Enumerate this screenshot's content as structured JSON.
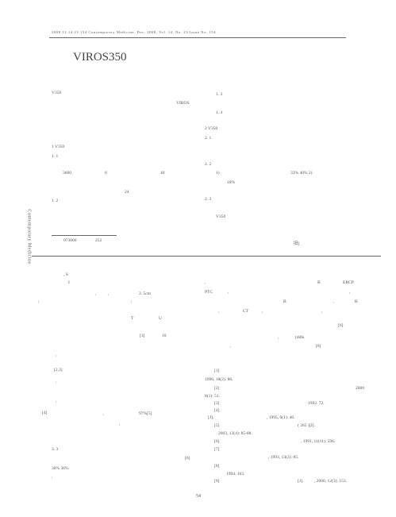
{
  "header": "2008 12 14 23 154 Contemporary Medicine, Dec. 2008, Vol. 14, No. 23 Issue No. 154",
  "title": "VIROS350",
  "sidebar": "Contemporary Medicine",
  "left_column": [
    "V350",
    "VIROS",
    "1 V350",
    "1. 1",
    "3600",
    "6",
    "40",
    "24",
    "1. 2"
  ],
  "footnote": [
    "073000",
    "252"
  ],
  "right_column": [
    "1. 3",
    "1. 4",
    "2 V350",
    "2. 1",
    "2. 2",
    "1)",
    "33%  40%  2)",
    "18%",
    "2. 3",
    "V350",
    "旧]"
  ],
  "lower_left": [
    ", S",
    "I",
    ",",
    ",",
    "2. 5cm",
    ";",
    ";",
    "T",
    "U",
    "[3]",
    "10",
    ",",
    "[2,3]",
    ",",
    ",",
    "[4]",
    ",",
    "97%[5]",
    ",",
    "3. 3",
    "[6]",
    "30%  36%",
    ","
  ],
  "lower_right": [
    ",",
    "B",
    "ERCP",
    "PTC",
    ",",
    ",",
    "B",
    ",",
    "B",
    ",",
    "CT",
    ",",
    ",",
    "[6]",
    ",",
    "(ddIs",
    ",",
    "[8]"
  ],
  "references": [
    "[1]",
    "1996, 18(2): 86.",
    "[2]",
    "2000",
    "8(1): 51.",
    "[3]",
    "1992. 72.",
    "[4]",
    "[J].",
    ", 1995, 6(1): 40.",
    "[5]",
    "( 265 )[J].",
    "2003, 13(4): 85-88.",
    "[6]",
    ", 1991, 11(11): 596.",
    "[7]",
    ", 1993, 13(2): 85.",
    "[8]",
    "1994. 163.",
    "[9]",
    "[J].",
    ", 2000, 12(3): 153."
  ],
  "page_number": "54"
}
